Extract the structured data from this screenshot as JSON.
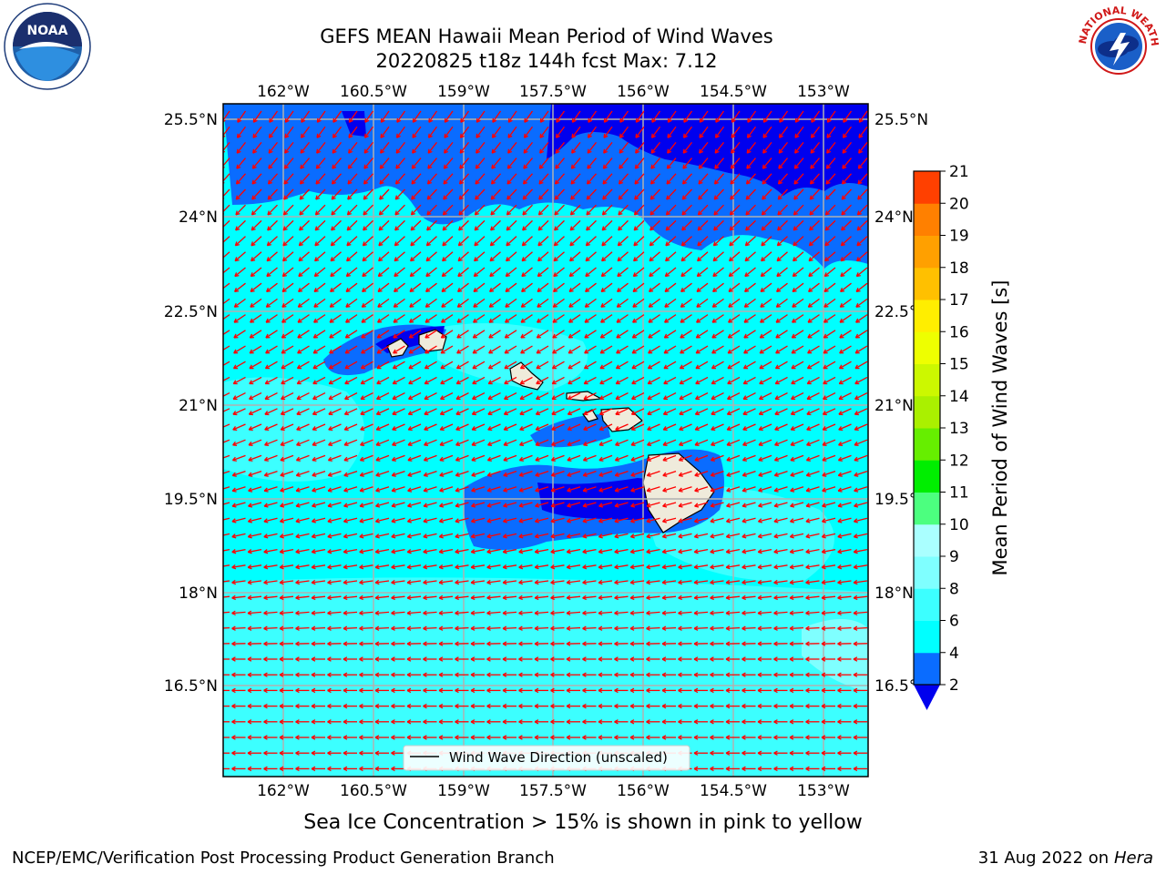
{
  "title": {
    "line1": "GEFS MEAN Hawaii Mean Period of Wind Waves",
    "line2": "20220825 t18z 144h fcst   Max: 7.12"
  },
  "map": {
    "lon_ticks": [
      "162°W",
      "160.5°W",
      "159°W",
      "157.5°W",
      "156°W",
      "154.5°W",
      "153°W"
    ],
    "lat_ticks": [
      "25.5°N",
      "24°N",
      "22.5°N",
      "21°N",
      "19.5°N",
      "18°N",
      "16.5°N"
    ],
    "legend_label": "Wind Wave Direction (unscaled)",
    "arrow_color": "#ff0000",
    "land_color": "#efebdb"
  },
  "colorbar": {
    "label": "Mean Period of Wind Waves [s]",
    "ticks": [
      "2",
      "4",
      "6",
      "8",
      "9",
      "10",
      "11",
      "12",
      "13",
      "14",
      "15",
      "16",
      "17",
      "18",
      "19",
      "20",
      "21"
    ],
    "colors": [
      "#0a6cff",
      "#00ffff",
      "#3cffff",
      "#7fffff",
      "#aaffff",
      "#4cff7f",
      "#00ee00",
      "#66ee00",
      "#aaf000",
      "#ccf800",
      "#eeff00",
      "#ffee00",
      "#ffc000",
      "#ffa000",
      "#ff8000",
      "#ff4000",
      "#ff0000"
    ],
    "under_color": "#0000ee"
  },
  "subnote": "Sea Ice Concentration > 15% is shown in pink to yellow",
  "footer": {
    "left": "NCEP/EMC/Verification Post Processing Product Generation Branch",
    "right_date": "31 Aug 2022 on",
    "right_host": "Hera"
  },
  "logos": {
    "noaa_text": "NOAA",
    "nws_text": "NATIONAL WEATHER SERVICE"
  }
}
